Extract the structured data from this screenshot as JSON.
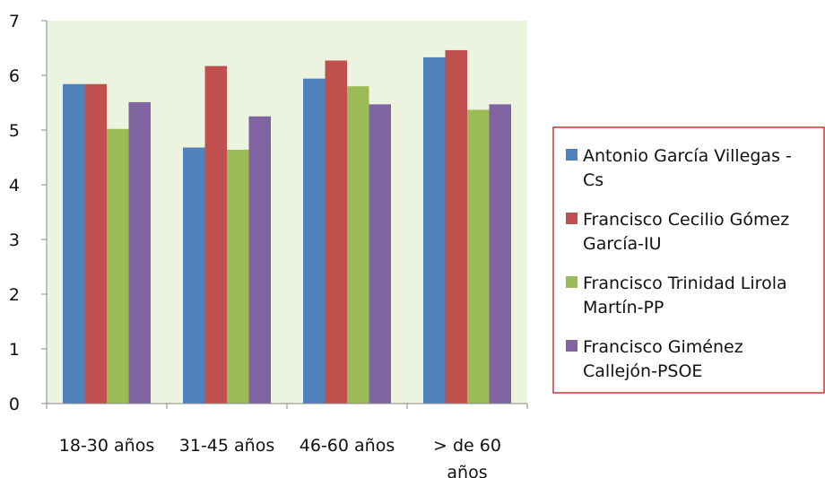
{
  "chart_data": {
    "type": "bar",
    "title": "",
    "xlabel": "",
    "ylabel": "",
    "categories": [
      [
        "18-30 años"
      ],
      [
        "31-45 años"
      ],
      [
        "46-60 años"
      ],
      [
        "> de 60",
        "años"
      ]
    ],
    "ylim": [
      0,
      7
    ],
    "yticks": [
      "0",
      "1",
      "2",
      "3",
      "4",
      "5",
      "6",
      "7"
    ],
    "grid": false,
    "legend_position": "right",
    "plot_background": "#ecf3de",
    "legend_border_color": "#c00000",
    "series": [
      {
        "name_lines": [
          "Antonio García Villegas -",
          "Cs"
        ],
        "color": "#4f81bd",
        "values": [
          5.84,
          4.68,
          5.94,
          6.33
        ]
      },
      {
        "name_lines": [
          "Francisco Cecilio Gómez",
          "García-IU"
        ],
        "color": "#c0504d",
        "values": [
          5.84,
          6.17,
          6.27,
          6.46
        ]
      },
      {
        "name_lines": [
          "Francisco Trinidad Lirola",
          "Martín-PP"
        ],
        "color": "#9bbb59",
        "values": [
          5.02,
          4.64,
          5.8,
          5.37
        ]
      },
      {
        "name_lines": [
          "Francisco Giménez",
          "Callejón-PSOE"
        ],
        "color": "#8064a2",
        "values": [
          5.51,
          5.25,
          5.47,
          5.47
        ]
      }
    ]
  }
}
